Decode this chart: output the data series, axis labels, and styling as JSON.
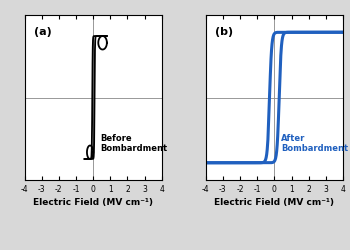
{
  "panel_a_label": "(a)",
  "panel_b_label": "(b)",
  "text_a": "Before\nBombardment",
  "text_b": "After\nBombardment",
  "text_a_color": "black",
  "text_b_color": "#2060bf",
  "loop_a_color": "black",
  "loop_b_color": "#2060bf",
  "xlabel": "Electric Field (MV cm⁻¹)",
  "xlim": [
    -4,
    4
  ],
  "xticks": [
    -4,
    -3,
    -2,
    -1,
    0,
    1,
    2,
    3,
    4
  ],
  "ylim_a": [
    -1.1,
    1.1
  ],
  "ylim_b": [
    -1.1,
    1.1
  ],
  "background_color": "#d8d8d8",
  "panel_bg": "white",
  "lw_a": 1.3,
  "lw_b": 2.2
}
